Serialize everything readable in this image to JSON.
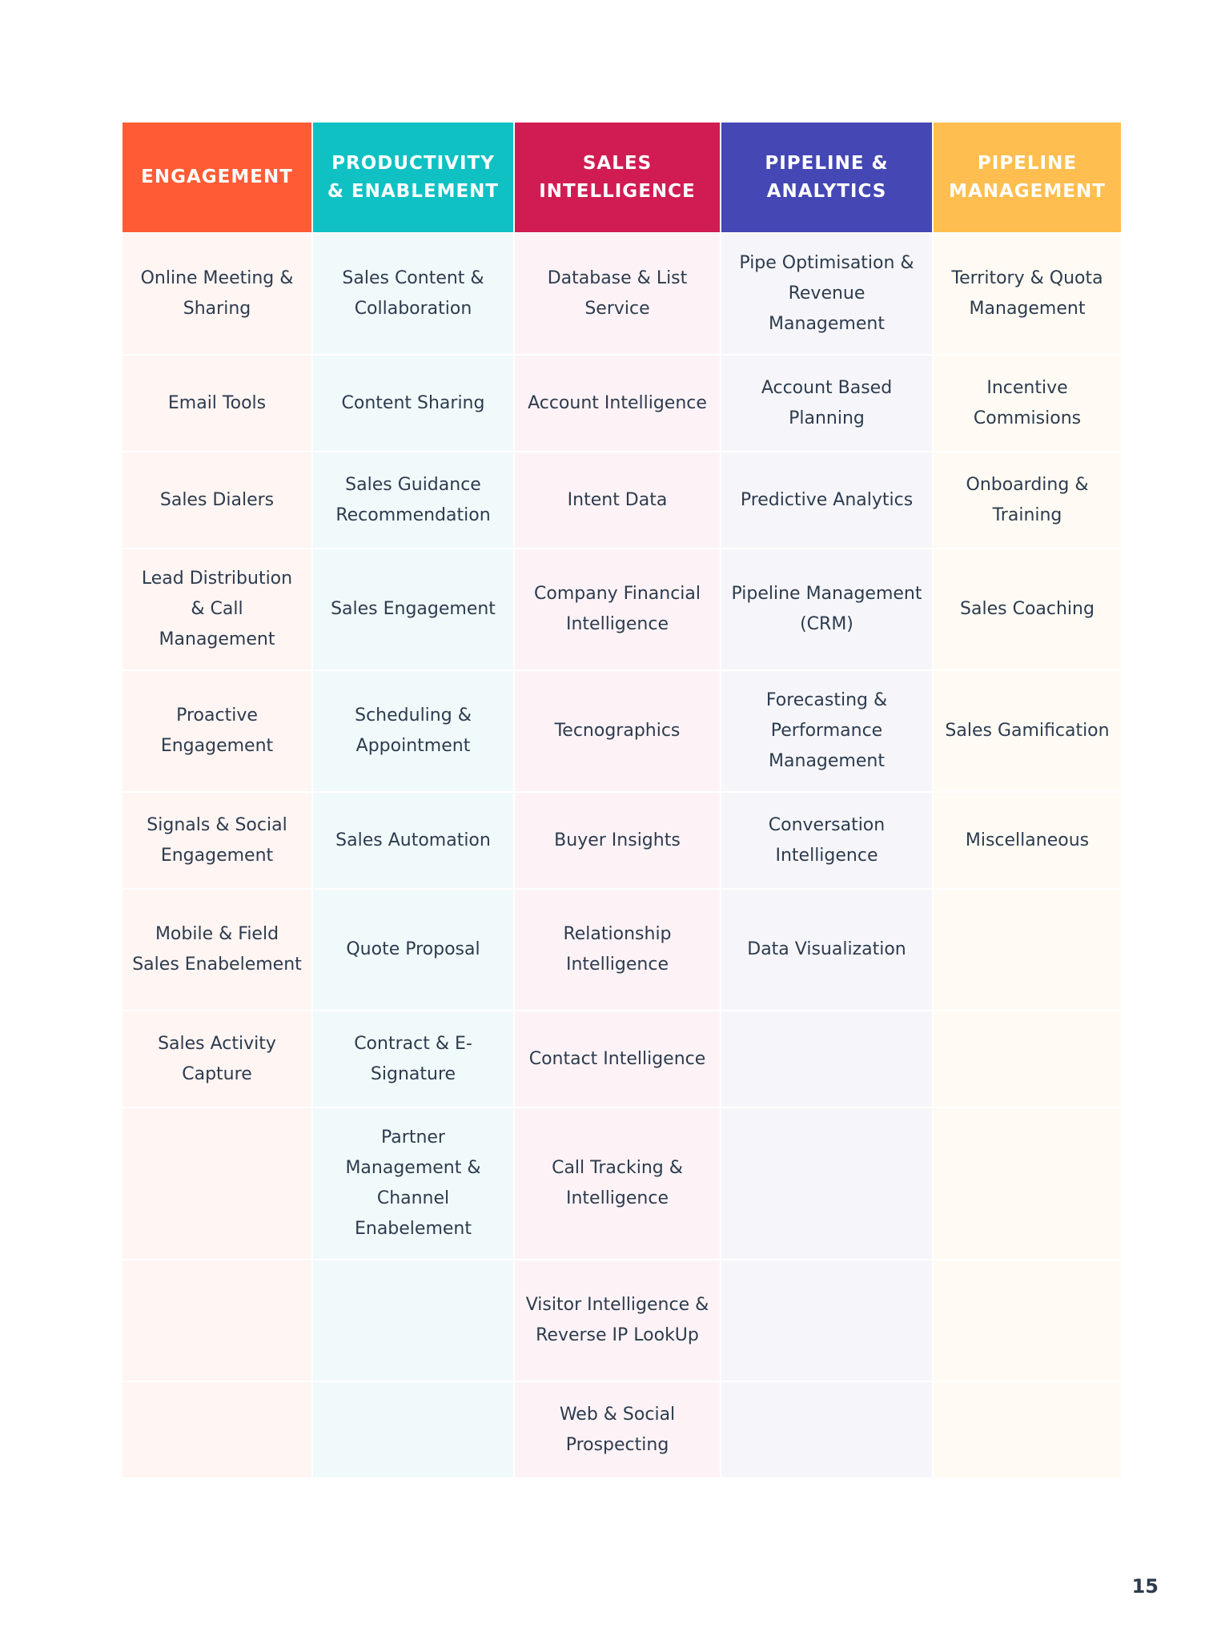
{
  "table": {
    "headers": [
      "ENGAGEMENT",
      "PRODUCTIVITY & ENABLEMENT",
      "SALES INTELLIGENCE",
      "PIPELINE & ANALYTICS",
      "PIPELINE MANAGEMENT"
    ],
    "rows": [
      [
        "Online Meeting & Sharing",
        "Sales Content & Collaboration",
        "Database & List Service",
        "Pipe Optimisation & Revenue Management",
        "Territory & Quota Management"
      ],
      [
        "Email Tools",
        "Content Sharing",
        "Account Intelligence",
        "Account Based Planning",
        "Incentive Commisions"
      ],
      [
        "Sales Dialers",
        "Sales Guidance Recommendation",
        "Intent Data",
        "Predictive Analytics",
        "Onboarding & Training"
      ],
      [
        "Lead Distribution & Call Management",
        "Sales Engagement",
        "Company Financial Intelligence",
        "Pipeline Management (CRM)",
        "Sales Coaching"
      ],
      [
        "Proactive Engagement",
        "Scheduling & Appointment",
        "Tecnographics",
        "Forecasting & Performance Management",
        "Sales Gamification"
      ],
      [
        "Signals & Social Engagement",
        "Sales Automation",
        "Buyer Insights",
        "Conversation Intelligence",
        "Miscellaneous"
      ],
      [
        "Mobile & Field Sales Enabelement",
        "Quote Proposal",
        "Relationship Intelligence",
        "Data Visualization",
        ""
      ],
      [
        "Sales Activity Capture",
        "Contract & E-Signature",
        "Contact Intelligence",
        "",
        ""
      ],
      [
        "",
        "Partner Management & Channel Enabelement",
        "Call Tracking & Intelligence",
        "",
        ""
      ],
      [
        "",
        "",
        "Visitor Intelligence & Reverse IP LookUp",
        "",
        ""
      ],
      [
        "",
        "",
        "Web & Social Prospecting",
        "",
        ""
      ]
    ]
  },
  "page_number": "15",
  "colors": {
    "engagement": "#ff5c35",
    "productivity": "#10c1c4",
    "sales_intelligence": "#d11c53",
    "pipeline_analytics": "#4447b4",
    "pipeline_management": "#ffbe4f",
    "text": "#2d3b4e"
  }
}
